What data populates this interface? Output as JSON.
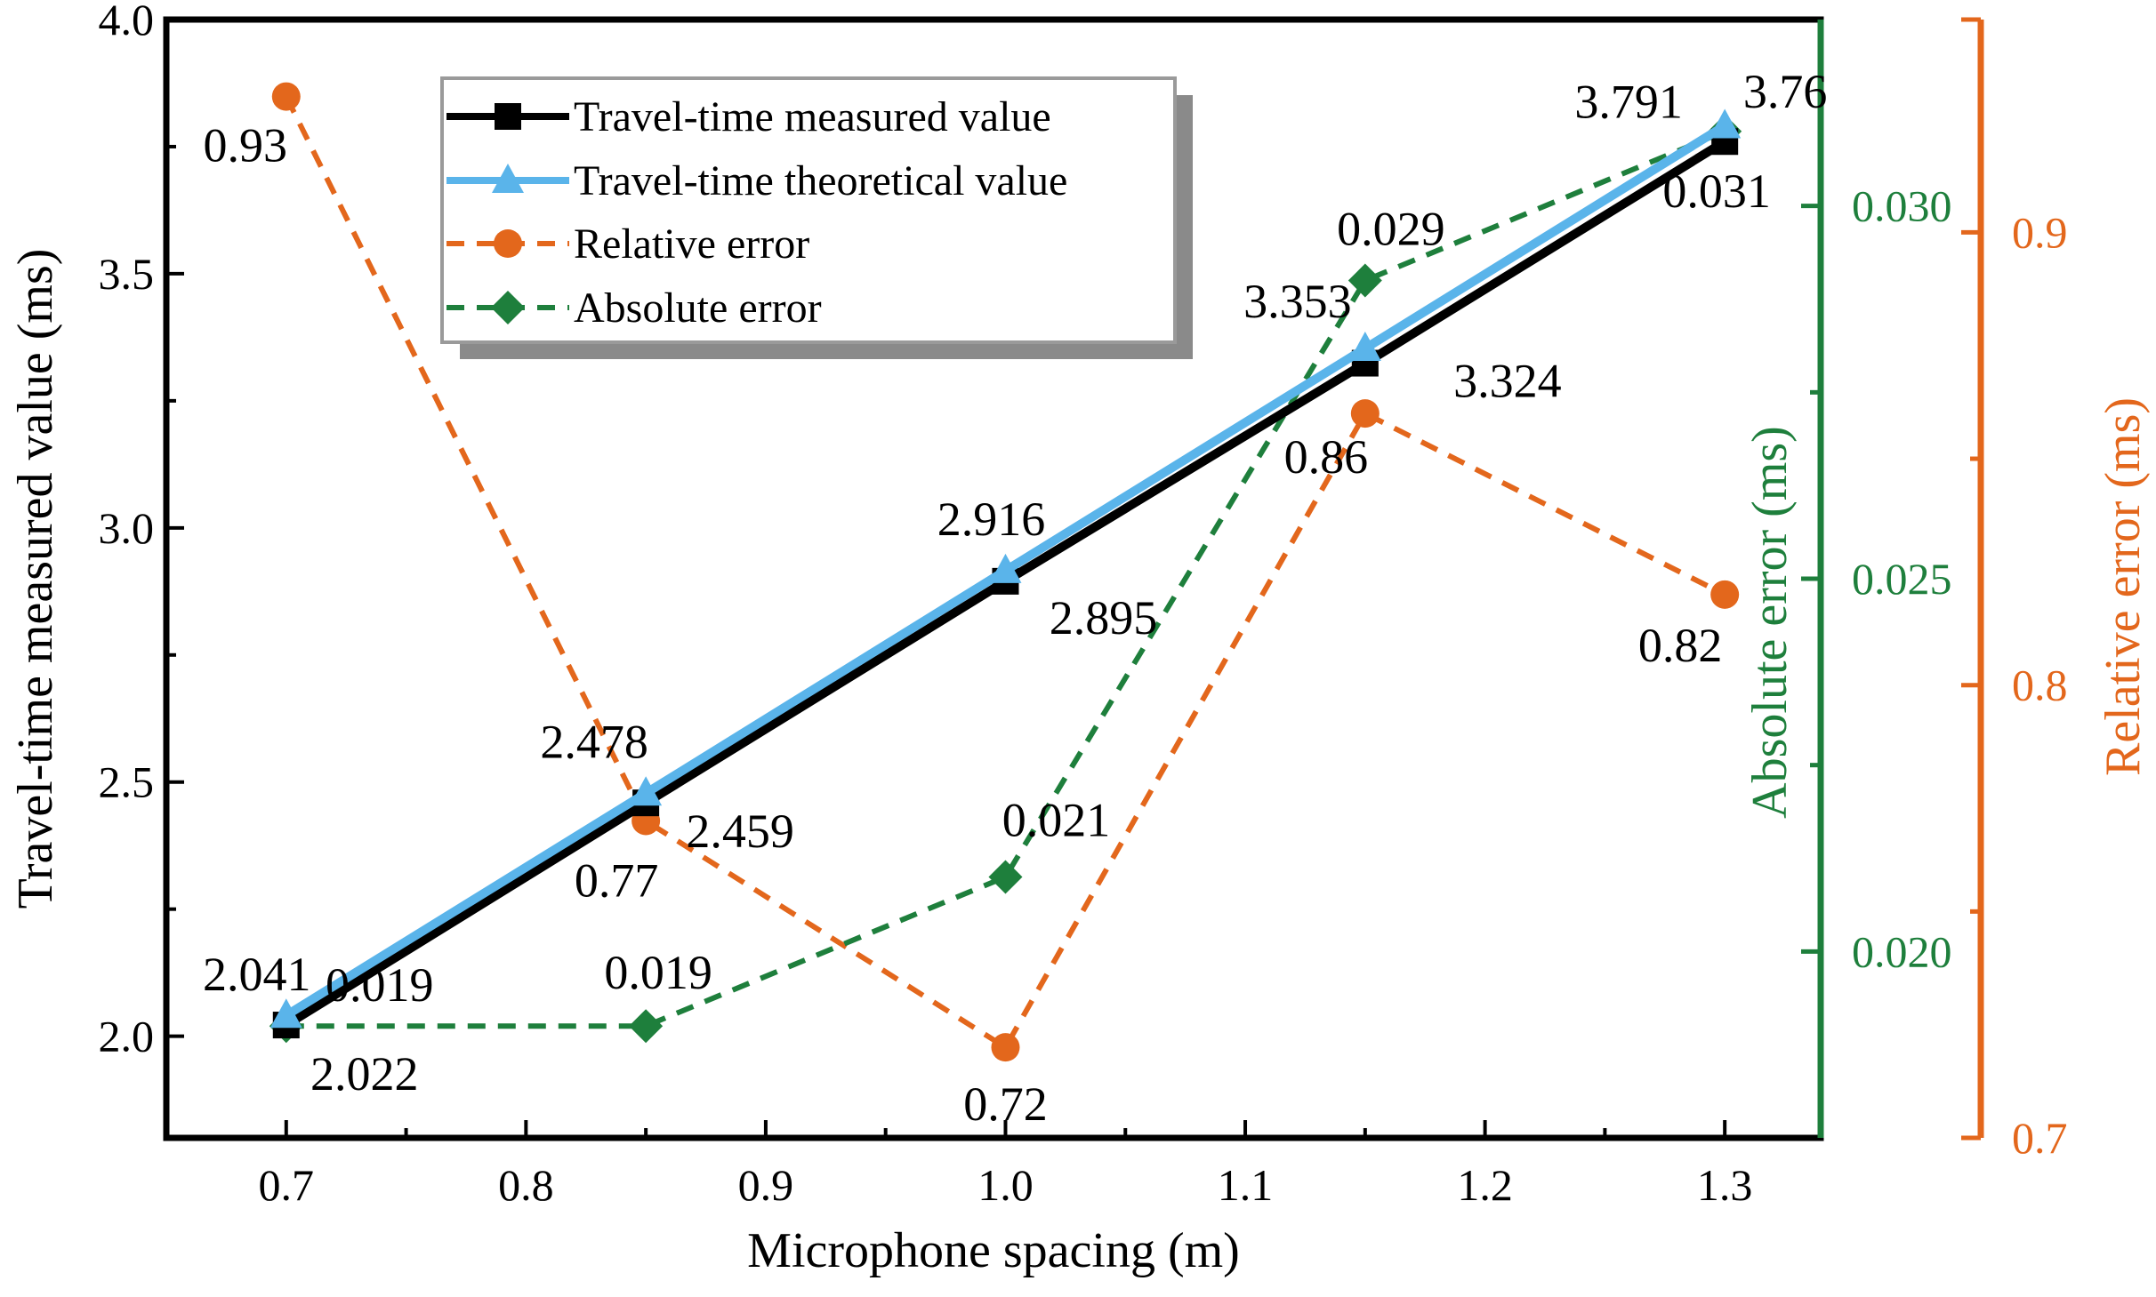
{
  "chart_data": {
    "type": "line",
    "xlabel": "Microphone spacing (m)",
    "ylabel": "Travel-time measured value (ms)",
    "y2label": "Absolute error (ms)",
    "y3label": "Relative error (ms)",
    "xlim": [
      0.65,
      1.34
    ],
    "ylim": [
      1.8,
      4.0
    ],
    "y2lim": [
      0.0175,
      0.0325
    ],
    "y3lim": [
      0.7,
      0.947
    ],
    "x_ticks": [
      "0.7",
      "0.8",
      "0.9",
      "1.0",
      "1.1",
      "1.2",
      "1.3"
    ],
    "y_ticks": [
      "2.0",
      "2.5",
      "3.0",
      "3.5",
      "4.0"
    ],
    "y2_ticks": [
      "0.020",
      "0.025",
      "0.030"
    ],
    "y3_ticks": [
      "0.7",
      "0.8",
      "0.9"
    ],
    "x": [
      0.7,
      0.85,
      1.0,
      1.15,
      1.3
    ],
    "legend_position": "top-left",
    "grid": false,
    "colors": {
      "measured": "#000000",
      "theoretical": "#5ab4ea",
      "relative": "#e3671c",
      "absolute": "#1e7f3c"
    },
    "series": [
      {
        "name": "Travel-time measured value",
        "axis": "left",
        "values": [
          2.022,
          2.459,
          2.895,
          3.324,
          3.76
        ],
        "labels": [
          "2.022",
          "2.459",
          "2.895",
          "3.324",
          ""
        ]
      },
      {
        "name": "Travel-time theoretical value",
        "axis": "left",
        "values": [
          2.041,
          2.478,
          2.916,
          3.353,
          3.791
        ],
        "labels": [
          "2.041",
          "2.478",
          "2.916",
          "3.353",
          "3.791"
        ]
      },
      {
        "name": "Relative error",
        "axis": "right-outer",
        "values": [
          0.93,
          0.77,
          0.72,
          0.86,
          0.82
        ],
        "labels": [
          "0.93",
          "0.77",
          "0.72",
          "0.86",
          "0.82"
        ]
      },
      {
        "name": "Absolute error",
        "axis": "right-inner",
        "values": [
          0.019,
          0.019,
          0.021,
          0.029,
          0.031
        ],
        "labels": [
          "0.019",
          "0.019",
          "0.021",
          "0.029",
          "0.031"
        ]
      }
    ],
    "extra_labels": [
      "3.76"
    ]
  }
}
